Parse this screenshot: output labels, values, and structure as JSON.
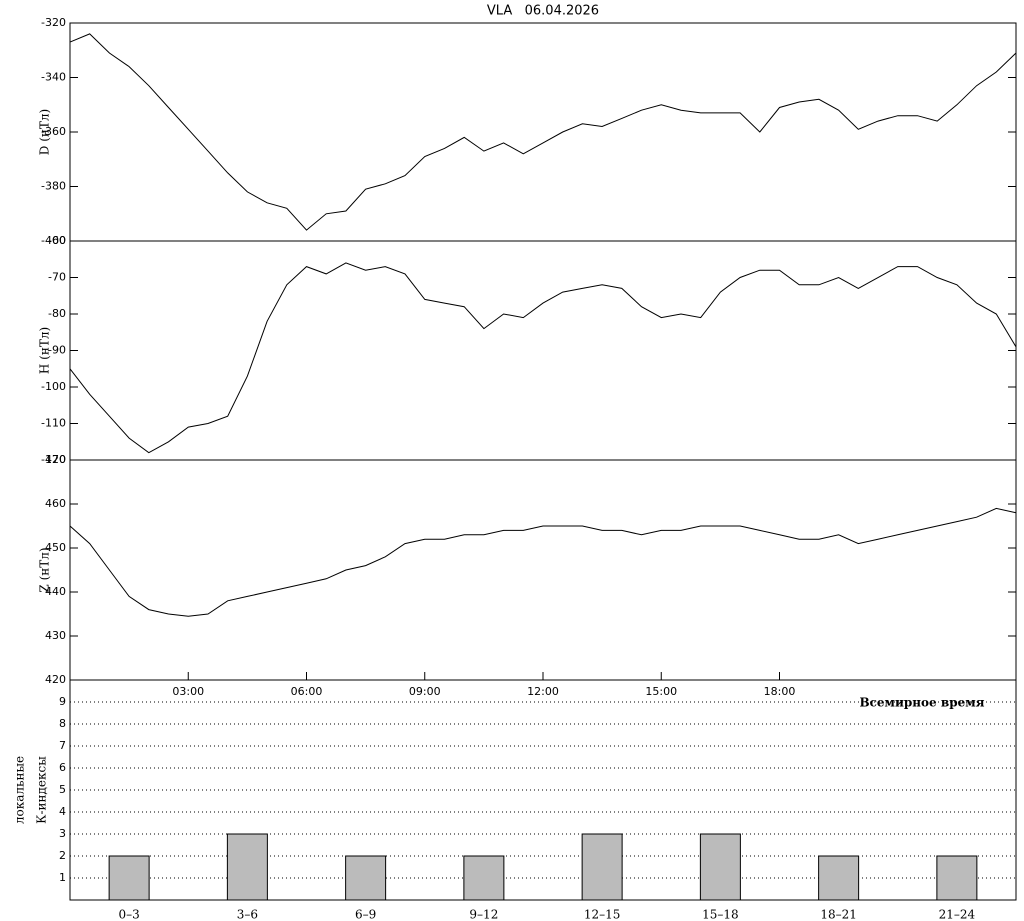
{
  "chart_data": [
    {
      "type": "line",
      "title": "VLA   06.04.2026",
      "y_label": "D (нТл)",
      "x": [
        0,
        0.5,
        1,
        1.5,
        2,
        2.5,
        3,
        3.5,
        4,
        4.5,
        5,
        5.5,
        6,
        6.5,
        7,
        7.5,
        8,
        8.5,
        9,
        9.5,
        10,
        10.5,
        11,
        11.5,
        12,
        12.5,
        13,
        13.5,
        14,
        14.5,
        15,
        15.5,
        16,
        16.5,
        17,
        17.5,
        18,
        18.5,
        19,
        19.5,
        20,
        20.5,
        21,
        21.5,
        22,
        22.5,
        23,
        23.5,
        24
      ],
      "values": [
        -327,
        -324,
        -331,
        -336,
        -343,
        -351,
        -359,
        -367,
        -375,
        -382,
        -386,
        -388,
        -396,
        -390,
        -389,
        -381,
        -379,
        -376,
        -369,
        -366,
        -362,
        -367,
        -364,
        -368,
        -364,
        -360,
        -357,
        -358,
        -355,
        -352,
        -350,
        -352,
        -353,
        -353,
        -353,
        -360,
        -351,
        -349,
        -348,
        -352,
        -359,
        -356,
        -354,
        -354,
        -356,
        -350,
        -343,
        -338,
        -331
      ],
      "color": "#000000",
      "xlim": [
        0,
        24
      ],
      "ylim": [
        -400,
        -320
      ],
      "yticks": [
        -400,
        -380,
        -360,
        -340,
        -320
      ]
    },
    {
      "type": "line",
      "y_label": "H (нТл)",
      "x": [
        0,
        0.5,
        1,
        1.5,
        2,
        2.5,
        3,
        3.5,
        4,
        4.5,
        5,
        5.5,
        6,
        6.5,
        7,
        7.5,
        8,
        8.5,
        9,
        9.5,
        10,
        10.5,
        11,
        11.5,
        12,
        12.5,
        13,
        13.5,
        14,
        14.5,
        15,
        15.5,
        16,
        16.5,
        17,
        17.5,
        18,
        18.5,
        19,
        19.5,
        20,
        20.5,
        21,
        21.5,
        22,
        22.5,
        23,
        23.5,
        24
      ],
      "values": [
        -95,
        -102,
        -108,
        -114,
        -118,
        -115,
        -111,
        -110,
        -108,
        -97,
        -82,
        -72,
        -67,
        -69,
        -66,
        -68,
        -67,
        -69,
        -76,
        -77,
        -78,
        -84,
        -80,
        -81,
        -77,
        -74,
        -73,
        -72,
        -73,
        -78,
        -81,
        -80,
        -81,
        -74,
        -70,
        -68,
        -68,
        -72,
        -72,
        -70,
        -73,
        -70,
        -67,
        -67,
        -70,
        -72,
        -77,
        -80,
        -89
      ],
      "color": "#000000",
      "xlim": [
        0,
        24
      ],
      "ylim": [
        -120,
        -60
      ],
      "yticks": [
        -120,
        -110,
        -100,
        -90,
        -80,
        -70,
        -60
      ]
    },
    {
      "type": "line",
      "y_label": "Z (нТл)",
      "x_label": "Всемирное время",
      "x": [
        0,
        0.5,
        1,
        1.5,
        2,
        2.5,
        3,
        3.5,
        4,
        4.5,
        5,
        5.5,
        6,
        6.5,
        7,
        7.5,
        8,
        8.5,
        9,
        9.5,
        10,
        10.5,
        11,
        11.5,
        12,
        12.5,
        13,
        13.5,
        14,
        14.5,
        15,
        15.5,
        16,
        16.5,
        17,
        17.5,
        18,
        18.5,
        19,
        19.5,
        20,
        20.5,
        21,
        21.5,
        22,
        22.5,
        23,
        23.5,
        24
      ],
      "values": [
        455,
        451,
        445,
        439,
        436,
        435,
        434.5,
        435,
        438,
        439,
        440,
        441,
        442,
        443,
        445,
        446,
        448,
        451,
        452,
        452,
        453,
        453,
        454,
        454,
        455,
        455,
        455,
        454,
        454,
        453,
        454,
        454,
        455,
        455,
        455,
        454,
        453,
        452,
        452,
        453,
        451,
        452,
        453,
        454,
        455,
        456,
        457,
        459,
        458
      ],
      "color": "#000000",
      "xlim": [
        0,
        24
      ],
      "ylim": [
        420,
        470
      ],
      "yticks": [
        420,
        430,
        440,
        450,
        460,
        470
      ],
      "xticks": [
        {
          "value": 3,
          "label": "03:00"
        },
        {
          "value": 6,
          "label": "06:00"
        },
        {
          "value": 9,
          "label": "09:00"
        },
        {
          "value": 12,
          "label": "12:00"
        },
        {
          "value": 15,
          "label": "15:00"
        },
        {
          "value": 18,
          "label": "18:00"
        }
      ]
    },
    {
      "type": "bar",
      "y_label": [
        "локальные",
        "К-индексы"
      ],
      "categories": [
        "0–3",
        "3–6",
        "6–9",
        "9–12",
        "12–15",
        "15–18",
        "18–21",
        "21–24"
      ],
      "values": [
        2,
        3,
        2,
        2,
        3,
        3,
        2,
        2
      ],
      "color": "#bbbbbb",
      "ylim": [
        0,
        10
      ],
      "yticks": [
        1,
        2,
        3,
        4,
        5,
        6,
        7,
        8,
        9
      ],
      "grid": true
    }
  ]
}
